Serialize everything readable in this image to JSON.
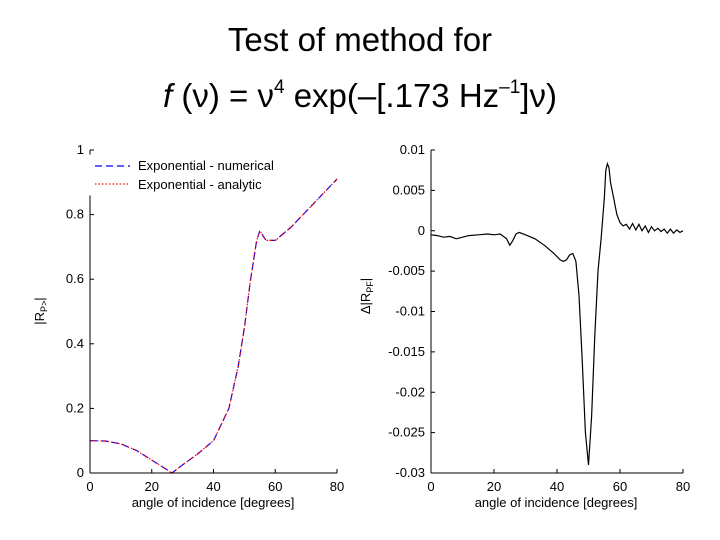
{
  "title": {
    "line1": "Test of method for",
    "line2_f": "f",
    "line2_a": " (ν) = ν",
    "line2_exp4": "4",
    "line2_b": " exp(–[.173 Hz",
    "line2_expm1": "–1",
    "line2_c": "]ν)"
  },
  "chart_data": [
    {
      "type": "line",
      "xlabel": "angle of incidence [degrees]",
      "ylabel": "|R",
      "ylabel_sub": "P>",
      "ylabel_end": "|",
      "xlim": [
        0,
        80
      ],
      "ylim": [
        0,
        1
      ],
      "xticks": [
        "0",
        "20",
        "40",
        "60",
        "80"
      ],
      "yticks": [
        "0",
        "0.2",
        "0.4",
        "0.6",
        "0.8",
        "1"
      ],
      "legend_position": "top-left",
      "series": [
        {
          "name": "Exponential - numerical",
          "color": "#0000ff",
          "style": "dashed",
          "x": [
            0,
            5,
            10,
            15,
            20,
            25,
            26.5,
            30,
            35,
            40,
            45,
            48,
            50,
            52,
            54,
            55,
            57,
            60,
            65,
            70,
            75,
            80
          ],
          "y": [
            0.1,
            0.099,
            0.09,
            0.07,
            0.04,
            0.01,
            0.0,
            0.025,
            0.06,
            0.1,
            0.2,
            0.33,
            0.45,
            0.6,
            0.72,
            0.75,
            0.72,
            0.72,
            0.76,
            0.81,
            0.86,
            0.91
          ]
        },
        {
          "name": "Exponential - analytic",
          "color": "#ff0000",
          "style": "dotted",
          "x": [
            0,
            5,
            10,
            15,
            20,
            25,
            26.5,
            30,
            35,
            40,
            45,
            48,
            50,
            52,
            54,
            55,
            57,
            60,
            65,
            70,
            75,
            80
          ],
          "y": [
            0.1,
            0.099,
            0.09,
            0.07,
            0.04,
            0.01,
            0.0,
            0.025,
            0.06,
            0.1,
            0.2,
            0.33,
            0.45,
            0.6,
            0.72,
            0.75,
            0.72,
            0.72,
            0.76,
            0.81,
            0.86,
            0.91
          ]
        }
      ]
    },
    {
      "type": "line",
      "xlabel": "angle of incidence [degrees]",
      "ylabel": "Δ|R",
      "ylabel_sub": "PF",
      "ylabel_end": "|",
      "xlim": [
        0,
        80
      ],
      "ylim": [
        -0.03,
        0.01
      ],
      "xticks": [
        "0",
        "20",
        "40",
        "60",
        "80"
      ],
      "yticks": [
        "-0.03",
        "-0.025",
        "-0.02",
        "-0.015",
        "-0.01",
        "-0.005",
        "0",
        "0.005",
        "0.01"
      ],
      "series": [
        {
          "name": "",
          "color": "#000000",
          "style": "solid",
          "x": [
            0,
            2,
            4,
            6,
            8,
            10,
            12,
            15,
            18,
            20,
            22,
            24,
            25,
            26,
            27,
            28,
            30,
            33,
            36,
            39,
            41,
            42,
            43,
            44,
            45,
            46,
            47,
            48,
            49,
            50,
            51,
            52,
            53,
            54,
            55,
            55.5,
            56,
            56.5,
            57,
            58,
            59,
            60,
            61,
            62,
            63,
            64,
            65,
            66,
            67,
            68,
            69,
            70,
            71,
            72,
            73,
            74,
            75,
            76,
            77,
            78,
            79,
            80
          ],
          "y": [
            -0.0005,
            -0.0006,
            -0.0008,
            -0.0007,
            -0.001,
            -0.0008,
            -0.0006,
            -0.0005,
            -0.0004,
            -0.0005,
            -0.0004,
            -0.001,
            -0.0018,
            -0.0012,
            -0.0004,
            -0.0002,
            -0.0005,
            -0.001,
            -0.0018,
            -0.0028,
            -0.0036,
            -0.0038,
            -0.0036,
            -0.003,
            -0.0028,
            -0.0038,
            -0.008,
            -0.016,
            -0.025,
            -0.029,
            -0.023,
            -0.013,
            -0.005,
            -0.001,
            0.004,
            0.0075,
            0.0083,
            0.0078,
            0.006,
            0.004,
            0.002,
            0.001,
            0.0006,
            0.0008,
            0.0002,
            0.0009,
            0.0001,
            0.0008,
            0.0,
            0.0006,
            -0.0002,
            0.0005,
            0.0,
            0.0003,
            -0.0001,
            0.0002,
            -0.0003,
            0.0002,
            -0.0003,
            0.0001,
            -0.0002,
            0.0
          ]
        }
      ]
    }
  ]
}
